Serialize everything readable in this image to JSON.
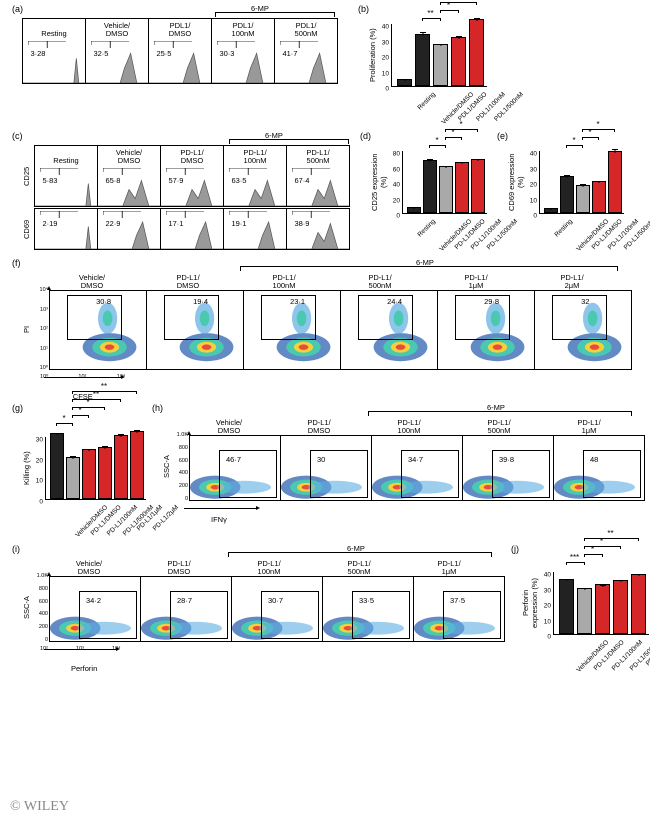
{
  "conditions_short": [
    "Resting",
    "Vehicle/DMSO",
    "PDL1/DMSO",
    "PDL1/100nM",
    "PDL1/500nM"
  ],
  "bracket_6mp": "6-MP",
  "panel_a": {
    "label": "(a)",
    "cells": [
      {
        "title": "Resting",
        "gate": "3·28"
      },
      {
        "title": "Vehicle/\nDMSO",
        "gate": "32·5"
      },
      {
        "title": "PDL1/\nDMSO",
        "gate": "25·5"
      },
      {
        "title": "PDL1/\n100nM",
        "gate": "30·3"
      },
      {
        "title": "PDL1/\n500nM",
        "gate": "41·7"
      }
    ]
  },
  "panel_b": {
    "label": "(b)",
    "ylabel": "Proliferation (%)",
    "ymax": 40,
    "ytick_step": 10,
    "categories": [
      "Resting",
      "Vehicle/DMSO",
      "PDL1/DMSO",
      "PDL1/100nM",
      "PDL1/500nM"
    ],
    "values": [
      3.3,
      32.5,
      25.5,
      30.3,
      41.7
    ],
    "err": [
      0.5,
      1.5,
      1.0,
      1.2,
      1.3
    ],
    "colors": [
      "black",
      "black",
      "grey",
      "red",
      "red"
    ],
    "sig": [
      {
        "from": 1,
        "to": 2,
        "text": "**",
        "level": 0
      },
      {
        "from": 2,
        "to": 3,
        "text": "*",
        "level": 1
      },
      {
        "from": 2,
        "to": 4,
        "text": "*",
        "level": 2
      }
    ]
  },
  "panel_c": {
    "label": "(c)",
    "rows": [
      {
        "ylab": "CD25",
        "cells": [
          {
            "title": "Resting",
            "gate": "5·83"
          },
          {
            "title": "Vehicle/\nDMSO",
            "gate": "65·8"
          },
          {
            "title": "PD-L1/\nDMSO",
            "gate": "57·9"
          },
          {
            "title": "PD-L1/\n100nM",
            "gate": "63·5"
          },
          {
            "title": "PD-L1/\n500nM",
            "gate": "67·4"
          }
        ]
      },
      {
        "ylab": "CD69",
        "cells": [
          {
            "title": "",
            "gate": "2·19"
          },
          {
            "title": "",
            "gate": "22·9"
          },
          {
            "title": "",
            "gate": "17·1"
          },
          {
            "title": "",
            "gate": "19·1"
          },
          {
            "title": "",
            "gate": "38·9"
          }
        ]
      }
    ]
  },
  "panel_d": {
    "label": "(d)",
    "ylabel": "CD25 expression (%)",
    "ymax": 80,
    "ytick_step": 20,
    "categories": [
      "Resting",
      "Vehicle/DMSO",
      "PD-L1/DMSO",
      "PD-L1/100nM",
      "PD-L1/500nM"
    ],
    "values": [
      5.8,
      65.8,
      57.9,
      63.5,
      67.4
    ],
    "err": [
      0.6,
      2,
      1.8,
      1.5,
      1.5
    ],
    "colors": [
      "black",
      "black",
      "grey",
      "red",
      "red"
    ],
    "sig": [
      {
        "from": 1,
        "to": 2,
        "text": "*",
        "level": 0
      },
      {
        "from": 2,
        "to": 3,
        "text": "*",
        "level": 1
      },
      {
        "from": 2,
        "to": 4,
        "text": "*",
        "level": 2
      }
    ]
  },
  "panel_e": {
    "label": "(e)",
    "ylabel": "CD69 expression (%)",
    "ymax": 40,
    "ytick_step": 10,
    "categories": [
      "Resting",
      "Vehicle/DMSO",
      "PD-L1/DMSO",
      "PD-L1/100nM",
      "PD-L1/500nM"
    ],
    "values": [
      2.2,
      22.9,
      17.1,
      19.1,
      38.9
    ],
    "err": [
      0.4,
      1.2,
      1.0,
      1.0,
      1.5
    ],
    "colors": [
      "black",
      "black",
      "grey",
      "red",
      "red"
    ],
    "sig": [
      {
        "from": 1,
        "to": 2,
        "text": "*",
        "level": 0
      },
      {
        "from": 2,
        "to": 3,
        "text": "*",
        "level": 1
      },
      {
        "from": 2,
        "to": 4,
        "text": "*",
        "level": 2
      }
    ]
  },
  "panel_f": {
    "label": "(f)",
    "ylab": "PI",
    "xlab": "CFSE",
    "yticks": [
      "10⁴",
      "10³",
      "10²",
      "10¹",
      "10⁰"
    ],
    "xticks": [
      "10⁰",
      "10²",
      "10⁴"
    ],
    "cells": [
      {
        "title": "Vehicle/\nDMSO",
        "gate": "30·8"
      },
      {
        "title": "PD-L1/\nDMSO",
        "gate": "19·4"
      },
      {
        "title": "PD-L1/\n100nM",
        "gate": "23·1"
      },
      {
        "title": "PD-L1/\n500nM",
        "gate": "24·4"
      },
      {
        "title": "PD-L1/\n1μM",
        "gate": "29·8"
      },
      {
        "title": "PD-L1/\n2μM",
        "gate": "32"
      }
    ]
  },
  "panel_g": {
    "label": "(g)",
    "ylabel": "Killing (%)",
    "ymax": 30,
    "ytick_step": 10,
    "categories": [
      "Vehicle/DMSO",
      "PD-L1/DMSO",
      "PD-L1/100nM",
      "PD-L1/500nM",
      "PD-L1/1μM",
      "PD-L1/2μM"
    ],
    "values": [
      30.8,
      19.4,
      23.1,
      24.4,
      29.8,
      32
    ],
    "err": [
      0.8,
      0.8,
      0.8,
      0.8,
      1.0,
      0.8
    ],
    "colors": [
      "black",
      "grey",
      "red",
      "red",
      "red",
      "red"
    ],
    "sig": [
      {
        "from": 0,
        "to": 1,
        "text": "*",
        "level": 0
      },
      {
        "from": 1,
        "to": 2,
        "text": "*",
        "level": 1
      },
      {
        "from": 1,
        "to": 3,
        "text": "*",
        "level": 2
      },
      {
        "from": 1,
        "to": 4,
        "text": "**",
        "level": 3
      },
      {
        "from": 1,
        "to": 5,
        "text": "**",
        "level": 4
      }
    ]
  },
  "panel_h": {
    "label": "(h)",
    "ylab": "SSC-A",
    "xlab": "IFNγ",
    "yticks": [
      "1.0K",
      "800",
      "600",
      "400",
      "200",
      "0"
    ],
    "cells": [
      {
        "title": "Vehicle/\nDMSO",
        "gate": "46·7"
      },
      {
        "title": "PD-L1/\nDMSO",
        "gate": "30"
      },
      {
        "title": "PD-L1/\n100nM",
        "gate": "34·7"
      },
      {
        "title": "PD-L1/\n500nM",
        "gate": "39·8"
      },
      {
        "title": "PD-L1/\n1μM",
        "gate": "48"
      }
    ]
  },
  "panel_i": {
    "label": "(i)",
    "ylab": "SSC-A",
    "xlab": "Perforin",
    "yticks": [
      "1.0K",
      "800",
      "600",
      "400",
      "200",
      "0"
    ],
    "xticks": [
      "10²",
      "10³",
      "10⁴"
    ],
    "cells": [
      {
        "title": "Vehicle/\nDMSO",
        "gate": "34·2"
      },
      {
        "title": "PD-L1/\nDMSO",
        "gate": "28·7"
      },
      {
        "title": "PD-L1/\n100nM",
        "gate": "30·7"
      },
      {
        "title": "PD-L1/\n500nM",
        "gate": "33·5"
      },
      {
        "title": "PD-L1/\n1μM",
        "gate": "37·5"
      }
    ]
  },
  "panel_j": {
    "label": "(j)",
    "ylabel": "Perforin expression (%)",
    "ymax": 40,
    "ytick_step": 10,
    "categories": [
      "Vehicle/DMSO",
      "PD-L1/DMSO",
      "PD-L1/100nM",
      "PD-L1/500nM",
      "PD-L1/1μM"
    ],
    "values": [
      34.2,
      28.7,
      30.7,
      33.5,
      37.5
    ],
    "err": [
      0.5,
      0.5,
      0.6,
      0.6,
      0.5
    ],
    "colors": [
      "black",
      "grey",
      "red",
      "red",
      "red"
    ],
    "sig": [
      {
        "from": 0,
        "to": 1,
        "text": "***",
        "level": 0
      },
      {
        "from": 1,
        "to": 2,
        "text": "*",
        "level": 1
      },
      {
        "from": 1,
        "to": 3,
        "text": "*",
        "level": 2
      },
      {
        "from": 1,
        "to": 4,
        "text": "**",
        "level": 3
      }
    ]
  },
  "watermark": "© WILEY"
}
